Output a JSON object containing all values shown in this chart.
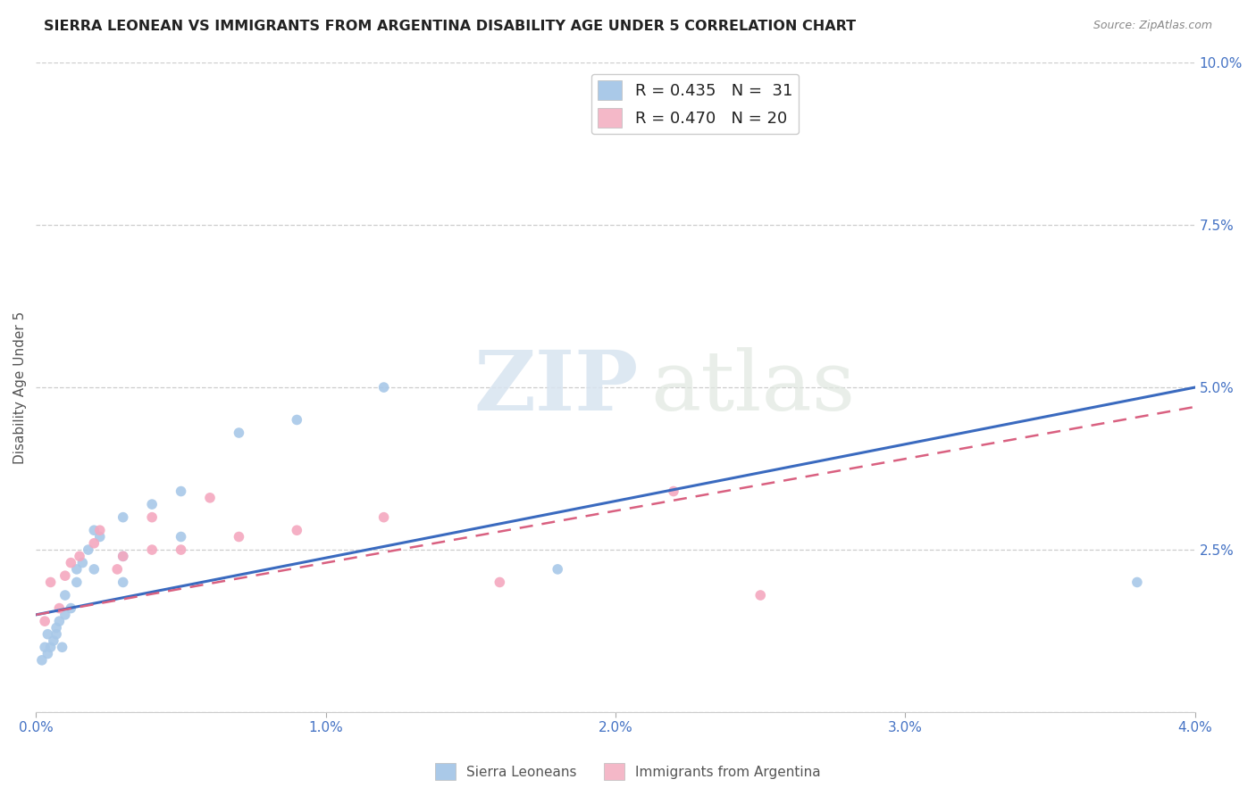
{
  "title": "SIERRA LEONEAN VS IMMIGRANTS FROM ARGENTINA DISABILITY AGE UNDER 5 CORRELATION CHART",
  "source": "Source: ZipAtlas.com",
  "ylabel": "Disability Age Under 5",
  "xlim": [
    0.0,
    0.04
  ],
  "ylim": [
    0.0,
    0.1
  ],
  "xticks": [
    0.0,
    0.01,
    0.02,
    0.03,
    0.04
  ],
  "xticklabels": [
    "0.0%",
    "1.0%",
    "2.0%",
    "3.0%",
    "4.0%"
  ],
  "yticks": [
    0.0,
    0.025,
    0.05,
    0.075,
    0.1
  ],
  "yticklabels": [
    "",
    "2.5%",
    "5.0%",
    "7.5%",
    "10.0%"
  ],
  "sierra_leone_color": "#a8c8e8",
  "argentina_color": "#f4a8bf",
  "trend_sl_color": "#3a6abf",
  "trend_arg_color": "#d96080",
  "legend_sl_label": "R = 0.435   N =  31",
  "legend_arg_label": "R = 0.470   N = 20",
  "legend_sl_color": "#aac9e8",
  "legend_arg_color": "#f4b8c8",
  "sl_x": [
    0.0002,
    0.0003,
    0.0004,
    0.0004,
    0.0005,
    0.0006,
    0.0007,
    0.0007,
    0.0008,
    0.0009,
    0.001,
    0.001,
    0.0012,
    0.0014,
    0.0014,
    0.0016,
    0.0018,
    0.002,
    0.002,
    0.0022,
    0.003,
    0.003,
    0.003,
    0.004,
    0.005,
    0.005,
    0.007,
    0.009,
    0.012,
    0.018,
    0.038
  ],
  "sl_y": [
    0.008,
    0.01,
    0.009,
    0.012,
    0.01,
    0.011,
    0.012,
    0.013,
    0.014,
    0.01,
    0.015,
    0.018,
    0.016,
    0.02,
    0.022,
    0.023,
    0.025,
    0.022,
    0.028,
    0.027,
    0.02,
    0.024,
    0.03,
    0.032,
    0.034,
    0.027,
    0.043,
    0.045,
    0.05,
    0.022,
    0.02
  ],
  "arg_x": [
    0.0003,
    0.0005,
    0.0008,
    0.001,
    0.0012,
    0.0015,
    0.002,
    0.0022,
    0.0028,
    0.003,
    0.004,
    0.004,
    0.005,
    0.006,
    0.007,
    0.009,
    0.012,
    0.016,
    0.022,
    0.025
  ],
  "arg_y": [
    0.014,
    0.02,
    0.016,
    0.021,
    0.023,
    0.024,
    0.026,
    0.028,
    0.022,
    0.024,
    0.025,
    0.03,
    0.025,
    0.033,
    0.027,
    0.028,
    0.03,
    0.02,
    0.034,
    0.018
  ],
  "background_color": "#ffffff",
  "grid_color": "#c8c8c8"
}
